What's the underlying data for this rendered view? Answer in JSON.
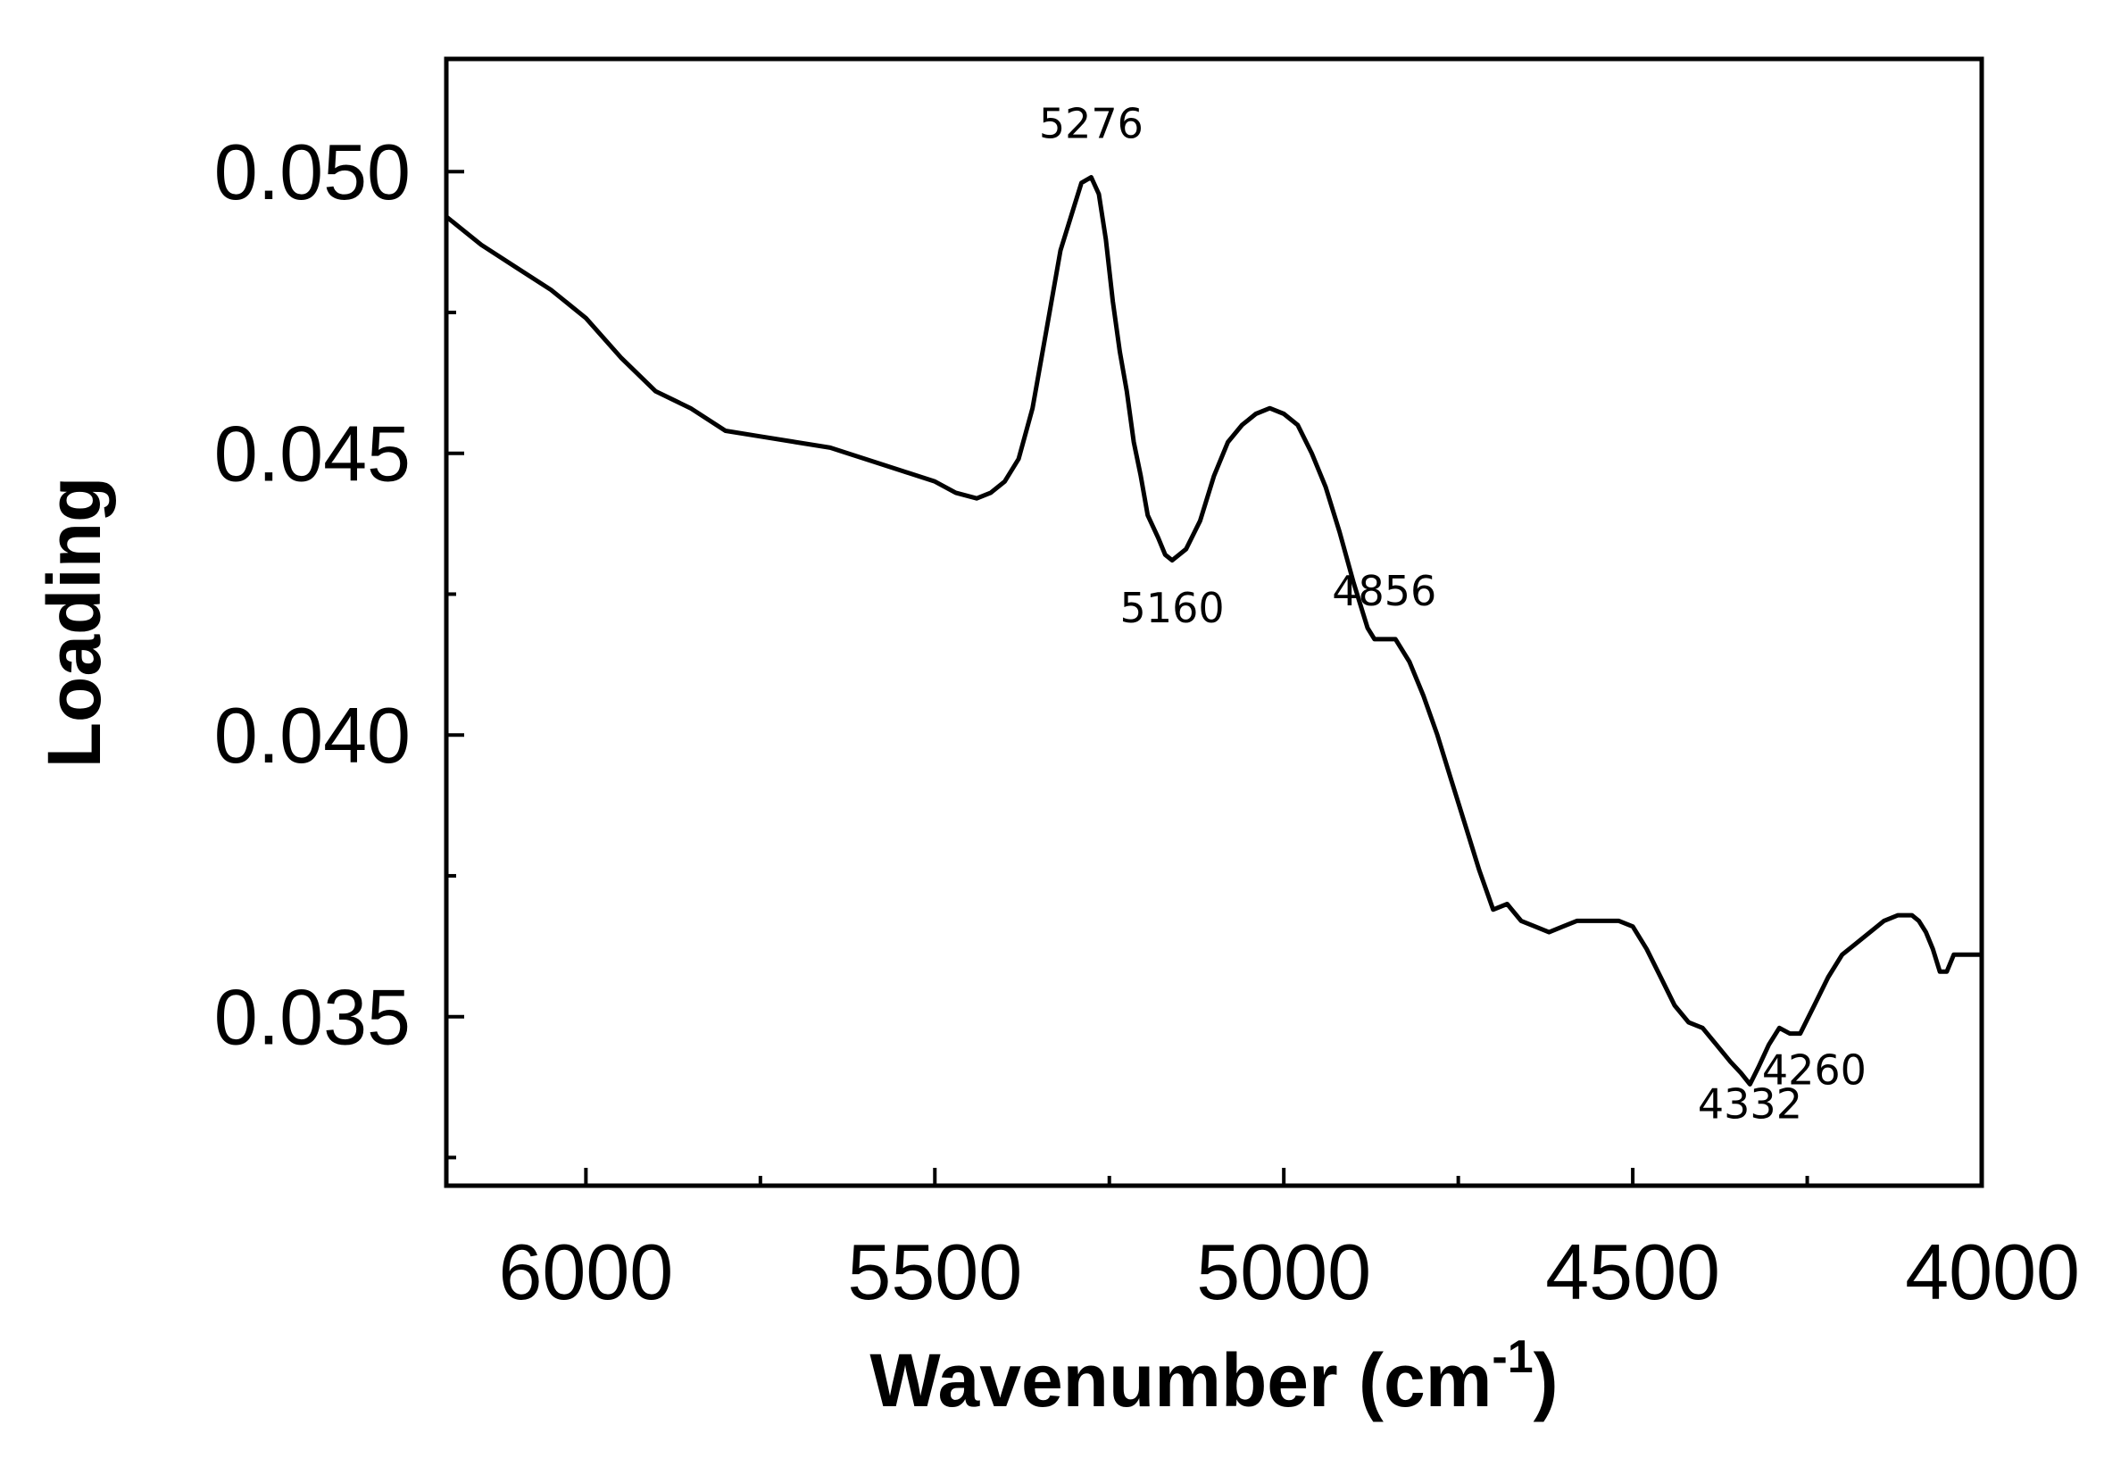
{
  "chart_data": {
    "type": "line",
    "title": "",
    "xlabel": "Wavenumber (cm",
    "xlabel_sup": "-1",
    "xlabel_end": ")",
    "ylabel": "Loading",
    "xlim": [
      6200,
      4000
    ],
    "ylim": [
      0.032,
      0.052
    ],
    "x_reversed": true,
    "x_major_ticks": [
      6000,
      5500,
      5000,
      4500,
      4000
    ],
    "x_tick_labels": [
      "6000",
      "5500",
      "5000",
      "4500",
      "4000"
    ],
    "x_minor_ticks": [
      5750,
      5250,
      4750,
      4250
    ],
    "y_major_ticks": [
      0.05,
      0.045,
      0.04,
      0.035
    ],
    "y_tick_labels": [
      "0.050",
      "0.045",
      "0.040",
      "0.035"
    ],
    "y_minor_ticks": [
      0.0475,
      0.0425,
      0.0375,
      0.0325
    ],
    "grid": false,
    "legend": "none",
    "series": [
      {
        "color": "#000000",
        "x": [
          6200,
          6150,
          6100,
          6050,
          6000,
          5950,
          5900,
          5850,
          5800,
          5750,
          5700,
          5650,
          5600,
          5550,
          5500,
          5470,
          5440,
          5420,
          5400,
          5380,
          5360,
          5340,
          5320,
          5300,
          5290,
          5276,
          5265,
          5255,
          5245,
          5235,
          5225,
          5215,
          5205,
          5195,
          5180,
          5170,
          5160,
          5150,
          5140,
          5120,
          5100,
          5080,
          5060,
          5040,
          5020,
          5000,
          4980,
          4960,
          4940,
          4920,
          4900,
          4880,
          4870,
          4856,
          4840,
          4820,
          4800,
          4780,
          4760,
          4740,
          4720,
          4700,
          4680,
          4660,
          4640,
          4620,
          4600,
          4580,
          4560,
          4540,
          4520,
          4500,
          4480,
          4460,
          4440,
          4420,
          4400,
          4380,
          4360,
          4345,
          4332,
          4320,
          4305,
          4290,
          4275,
          4260,
          4240,
          4220,
          4200,
          4180,
          4160,
          4140,
          4120,
          4100,
          4090,
          4080,
          4070,
          4060,
          4050,
          4040,
          4020,
          4000
        ],
        "y": [
          0.0492,
          0.0487,
          0.0483,
          0.0479,
          0.0474,
          0.0467,
          0.0461,
          0.0458,
          0.0454,
          0.0453,
          0.0452,
          0.0451,
          0.0449,
          0.0447,
          0.0445,
          0.0443,
          0.0442,
          0.0443,
          0.0445,
          0.0449,
          0.0458,
          0.0472,
          0.0486,
          0.0494,
          0.0498,
          0.0499,
          0.0496,
          0.0488,
          0.0477,
          0.0468,
          0.0461,
          0.0452,
          0.0446,
          0.0439,
          0.0435,
          0.0432,
          0.0431,
          0.0432,
          0.0433,
          0.0438,
          0.0446,
          0.0452,
          0.0455,
          0.0457,
          0.0458,
          0.0457,
          0.0455,
          0.045,
          0.0444,
          0.0436,
          0.0427,
          0.0419,
          0.0417,
          0.0417,
          0.0417,
          0.0413,
          0.0407,
          0.04,
          0.0392,
          0.0384,
          0.0376,
          0.0369,
          0.037,
          0.0367,
          0.0366,
          0.0365,
          0.0366,
          0.0367,
          0.0367,
          0.0367,
          0.0367,
          0.0366,
          0.0362,
          0.0357,
          0.0352,
          0.0349,
          0.0348,
          0.0345,
          0.0342,
          0.034,
          0.0338,
          0.0341,
          0.0345,
          0.0348,
          0.0347,
          0.0347,
          0.0352,
          0.0357,
          0.0361,
          0.0363,
          0.0365,
          0.0367,
          0.0368,
          0.0368,
          0.0367,
          0.0365,
          0.0362,
          0.0358,
          0.0358,
          0.0361,
          0.0361,
          0.0361
        ]
      }
    ],
    "annotations": [
      {
        "text": "5276",
        "x": 5276,
        "y": 0.0506
      },
      {
        "text": "5160",
        "x": 5160,
        "y": 0.042
      },
      {
        "text": "4856",
        "x": 4856,
        "y": 0.0423
      },
      {
        "text": "4332",
        "x": 4332,
        "y": 0.0332
      },
      {
        "text": "4260",
        "x": 4240,
        "y": 0.0338
      }
    ]
  }
}
